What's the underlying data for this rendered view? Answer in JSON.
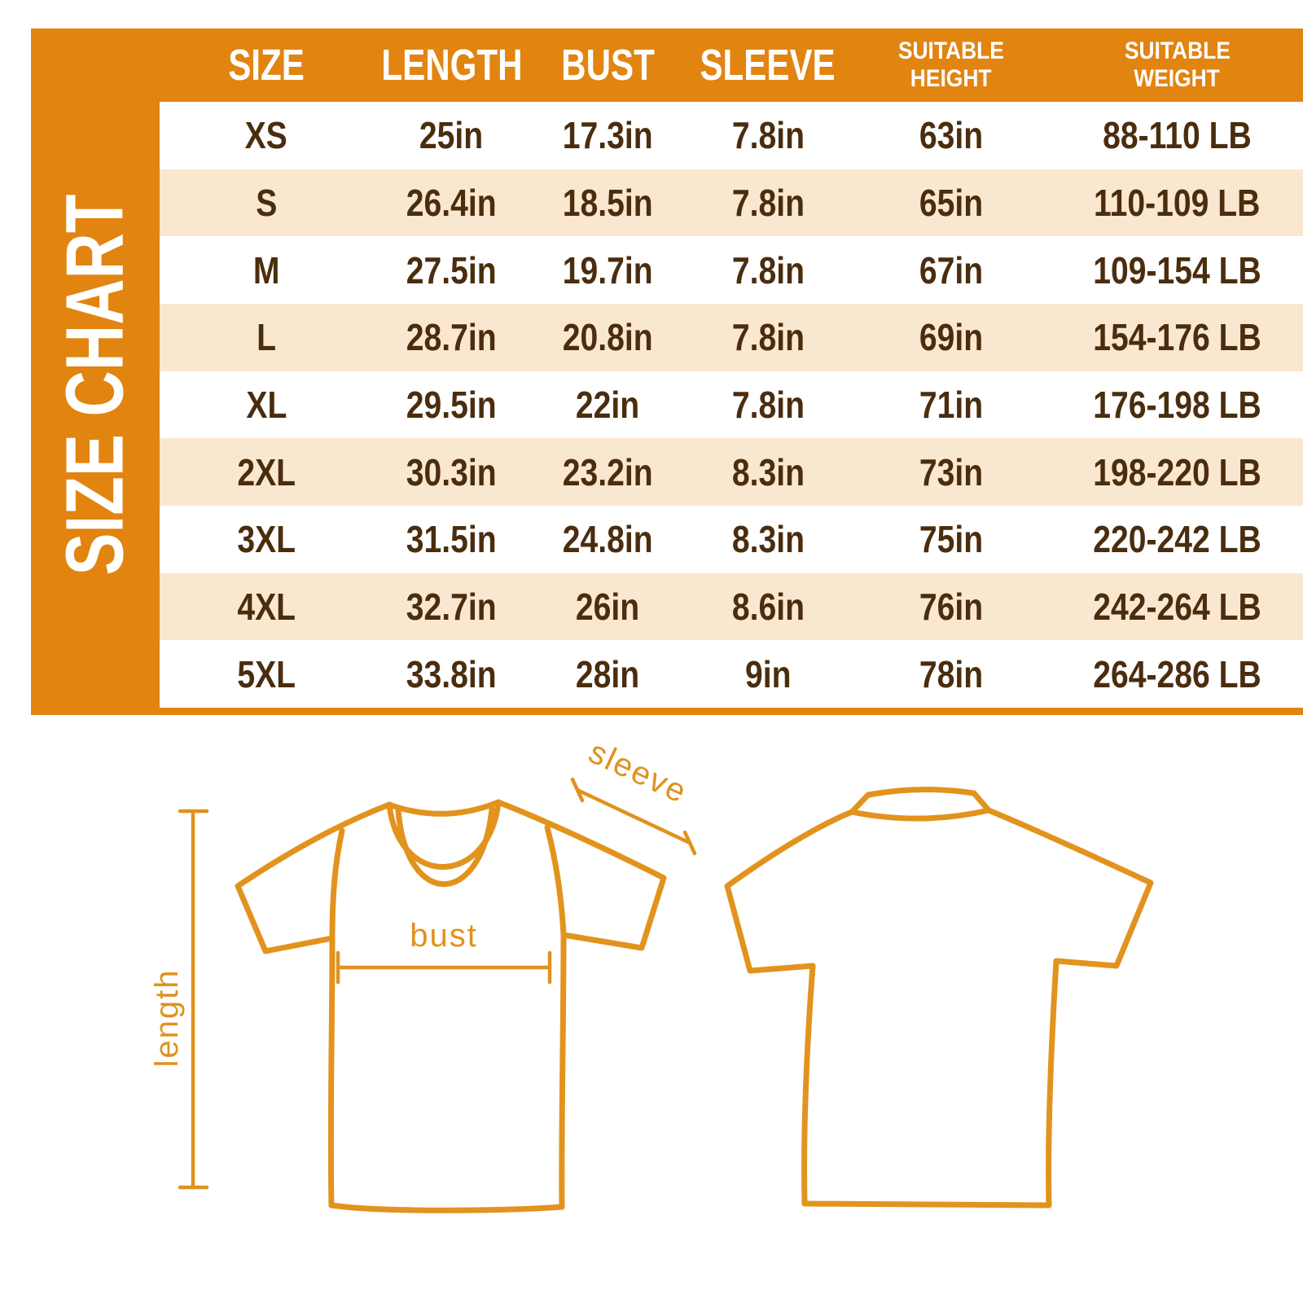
{
  "panel_title_vertical": "SIZE CHART",
  "colors": {
    "frame_orange": "#E28410",
    "row_alt_peach": "#FAE7CF",
    "value_brown": "#4A2D0E",
    "header_text": "#FFFFFF",
    "drawing_outline": "#E2931E",
    "label_orange": "#E0921E"
  },
  "table": {
    "keys": [
      "size",
      "length",
      "bust",
      "sleeve",
      "height",
      "weight"
    ],
    "headers": [
      {
        "id": "size",
        "lines": [
          "SIZE"
        ]
      },
      {
        "id": "length",
        "lines": [
          "LENGTH"
        ]
      },
      {
        "id": "bust",
        "lines": [
          "BUST"
        ]
      },
      {
        "id": "sleeve",
        "lines": [
          "SLEEVE"
        ]
      },
      {
        "id": "suitable-height",
        "lines": [
          "SUITABLE",
          "HEIGHT"
        ]
      },
      {
        "id": "suitable-weight",
        "lines": [
          "SUITABLE",
          "WEIGHT"
        ]
      }
    ],
    "rows": [
      {
        "size": "XS",
        "length": "25in",
        "bust": "17.3in",
        "sleeve": "7.8in",
        "height": "63in",
        "weight": "88-110 LB"
      },
      {
        "size": "S",
        "length": "26.4in",
        "bust": "18.5in",
        "sleeve": "7.8in",
        "height": "65in",
        "weight": "110-109 LB"
      },
      {
        "size": "M",
        "length": "27.5in",
        "bust": "19.7in",
        "sleeve": "7.8in",
        "height": "67in",
        "weight": "109-154 LB"
      },
      {
        "size": "L",
        "length": "28.7in",
        "bust": "20.8in",
        "sleeve": "7.8in",
        "height": "69in",
        "weight": "154-176 LB"
      },
      {
        "size": "XL",
        "length": "29.5in",
        "bust": "22in",
        "sleeve": "7.8in",
        "height": "71in",
        "weight": "176-198 LB"
      },
      {
        "size": "2XL",
        "length": "30.3in",
        "bust": "23.2in",
        "sleeve": "8.3in",
        "height": "73in",
        "weight": "198-220 LB"
      },
      {
        "size": "3XL",
        "length": "31.5in",
        "bust": "24.8in",
        "sleeve": "8.3in",
        "height": "75in",
        "weight": "220-242 LB"
      },
      {
        "size": "4XL",
        "length": "32.7in",
        "bust": "26in",
        "sleeve": "8.6in",
        "height": "76in",
        "weight": "242-264 LB"
      },
      {
        "size": "5XL",
        "length": "33.8in",
        "bust": "28in",
        "sleeve": "9in",
        "height": "78in",
        "weight": "264-286 LB"
      }
    ]
  },
  "diagram": {
    "length_label": "length",
    "bust_label": "bust",
    "sleeve_label": "sleeve"
  }
}
